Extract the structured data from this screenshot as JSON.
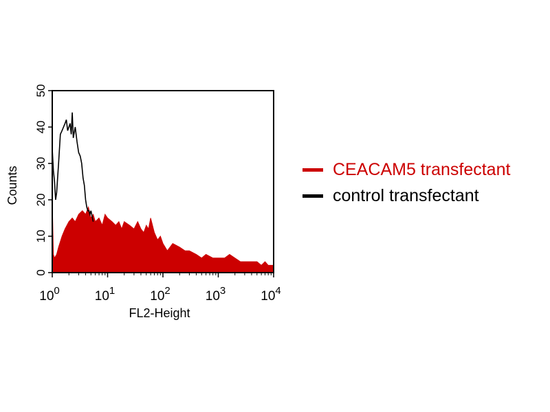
{
  "chart_data": {
    "type": "histogram",
    "title": "",
    "xlabel": "FL2-Height",
    "ylabel": "Counts",
    "x_scale": "log",
    "xlim": [
      1,
      10000
    ],
    "ylim": [
      0,
      50
    ],
    "x_ticks": [
      {
        "value": 1,
        "base": "10",
        "exp": "0"
      },
      {
        "value": 10,
        "base": "10",
        "exp": "1"
      },
      {
        "value": 100,
        "base": "10",
        "exp": "2"
      },
      {
        "value": 1000,
        "base": "10",
        "exp": "3"
      },
      {
        "value": 10000,
        "base": "10",
        "exp": "4"
      }
    ],
    "y_ticks": [
      0,
      10,
      20,
      30,
      40,
      50
    ],
    "grid": false,
    "legend_position": "right",
    "series": [
      {
        "name": "CEACAM5 transfectant",
        "color": "#cc0000",
        "style": "filled",
        "x": [
          1.0,
          1.05,
          1.1,
          1.2,
          1.3,
          1.5,
          1.7,
          2.0,
          2.3,
          2.6,
          3.0,
          3.5,
          4.0,
          4.5,
          5.0,
          5.5,
          6.0,
          7.0,
          8.0,
          9.0,
          10,
          12,
          14,
          16,
          18,
          20,
          25,
          30,
          35,
          40,
          45,
          50,
          55,
          60,
          70,
          80,
          90,
          100,
          120,
          150,
          200,
          250,
          300,
          400,
          500,
          600,
          800,
          1000,
          1300,
          1600,
          2000,
          2500,
          3000,
          4000,
          5000,
          6000,
          7000,
          8000,
          10000
        ],
        "y": [
          20,
          5,
          4,
          5,
          7,
          10,
          12,
          14,
          15,
          14,
          16,
          17,
          16,
          18,
          15,
          16,
          14,
          15,
          13,
          16,
          15,
          14,
          13,
          14,
          12,
          14,
          13,
          12,
          14,
          12,
          11,
          13,
          12,
          15,
          11,
          9,
          10,
          8,
          6,
          8,
          7,
          6,
          6,
          5,
          4,
          5,
          4,
          4,
          4,
          5,
          4,
          3,
          3,
          3,
          3,
          2,
          3,
          2,
          2
        ]
      },
      {
        "name": "control transfectant",
        "color": "#000000",
        "style": "line",
        "x": [
          1.0,
          1.05,
          1.1,
          1.15,
          1.2,
          1.3,
          1.4,
          1.5,
          1.6,
          1.7,
          1.8,
          1.9,
          2.0,
          2.1,
          2.2,
          2.3,
          2.4,
          2.6,
          2.8,
          3.0,
          3.2,
          3.4,
          3.6,
          3.8,
          4.0,
          4.2,
          4.4,
          4.6,
          4.8,
          5.0,
          5.5
        ],
        "y": [
          34,
          28,
          25,
          20,
          22,
          30,
          38,
          39,
          40,
          41,
          42,
          39,
          40,
          41,
          38,
          44,
          37,
          40,
          36,
          33,
          32,
          30,
          26,
          24,
          20,
          18,
          17,
          17,
          16,
          17,
          14
        ]
      }
    ]
  }
}
